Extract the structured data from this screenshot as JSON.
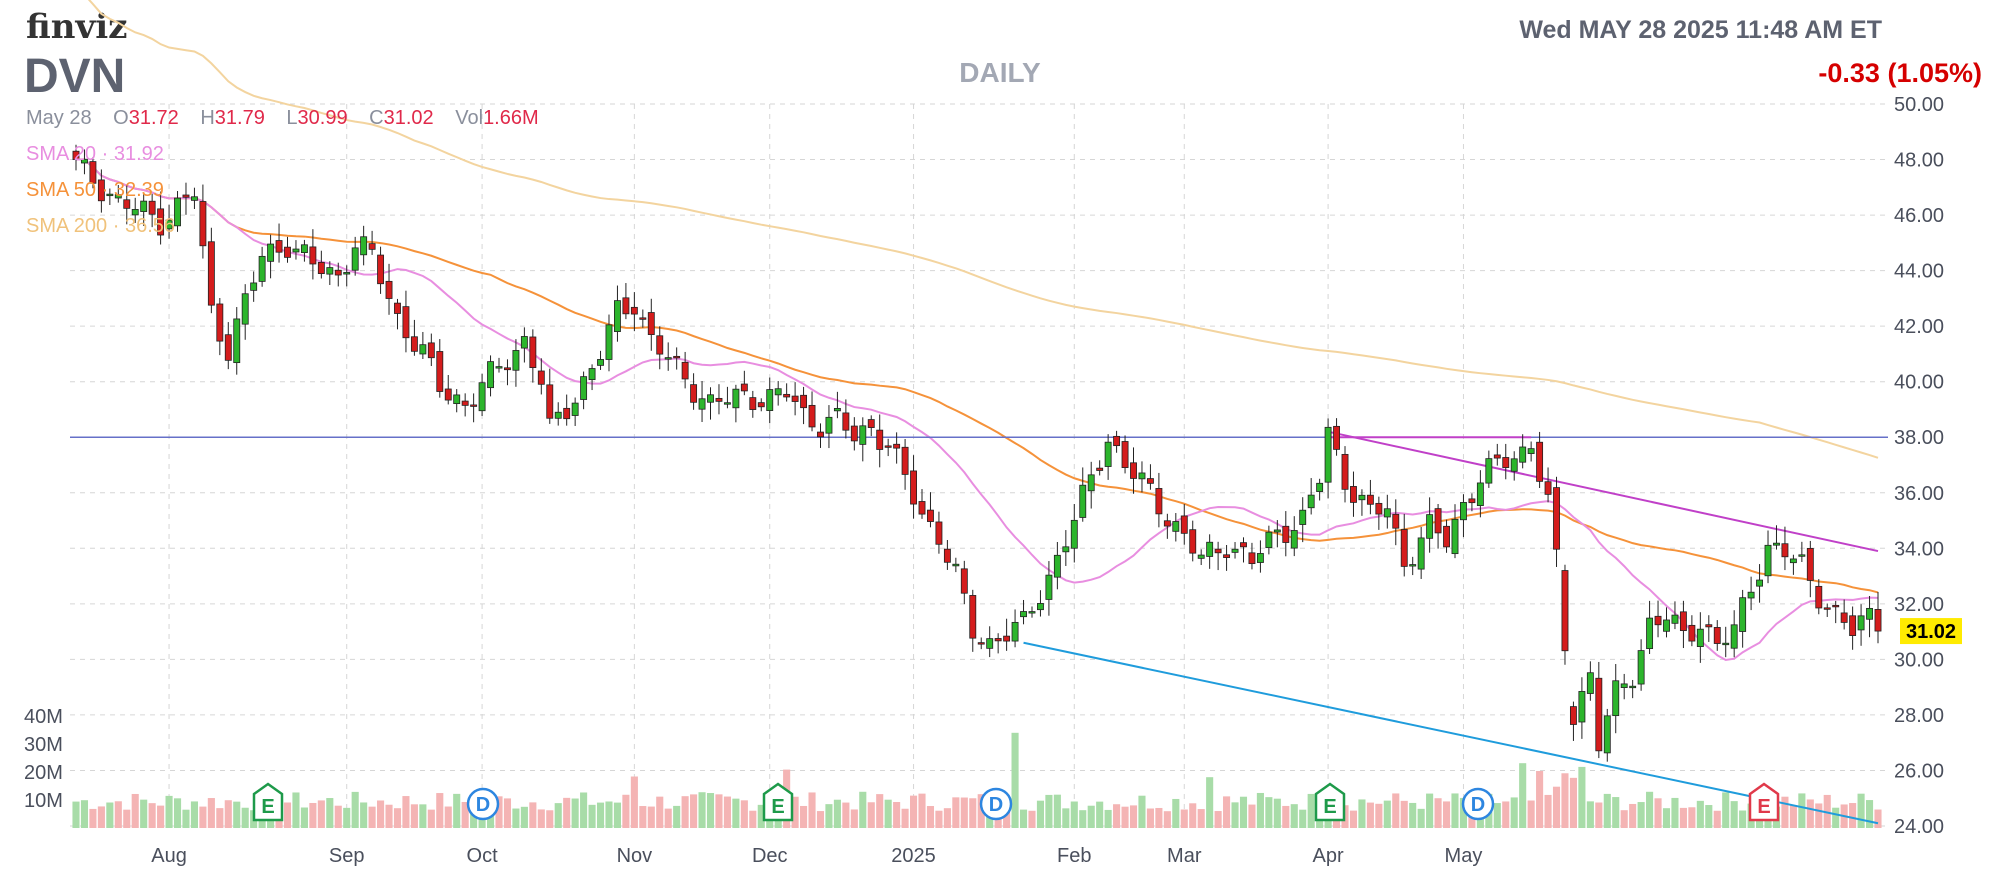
{
  "header": {
    "logo": "finviz",
    "ticker": "DVN",
    "timeframe": "DAILY",
    "datetime": "Wed MAY 28 2025 11:48 AM ET",
    "change": "-0.33 (1.05%)"
  },
  "ohlc": {
    "date": "May 28",
    "o_label": "O",
    "o": "31.72",
    "h_label": "H",
    "h": "31.79",
    "l_label": "L",
    "l": "30.99",
    "c_label": "C",
    "c": "31.02",
    "vol_label": "Vol",
    "vol": "1.66M"
  },
  "sma_legend": [
    {
      "label": "SMA 20",
      "value": "31.92",
      "color": "#e07be0"
    },
    {
      "label": "SMA 50",
      "value": "32.39",
      "color": "#f28c28"
    },
    {
      "label": "SMA 200",
      "value": "36.56",
      "color": "#f0c27b"
    }
  ],
  "last_price_label": "31.02",
  "colors": {
    "up": "#2cb52c",
    "down": "#d41c1c",
    "vol_up": "#a8dca8",
    "vol_down": "#f4b4b4",
    "sma20": "#e88ee0",
    "sma50": "#f5923a",
    "sma200": "#f3d49f",
    "support": "#6670c8",
    "resistance": "#c040c8",
    "trend_low": "#1f9cdc",
    "price_tag_bg": "#ffeb00"
  },
  "chart_data": {
    "type": "candlestick",
    "y_range": [
      24,
      50
    ],
    "y_ticks": [
      "50.00",
      "48.00",
      "46.00",
      "44.00",
      "42.00",
      "40.00",
      "38.00",
      "36.00",
      "34.00",
      "32.00",
      "30.00",
      "28.00",
      "26.00",
      "24.00"
    ],
    "volume_ticks": [
      "40M",
      "30M",
      "20M",
      "10M"
    ],
    "x_labels": [
      "Aug",
      "Sep",
      "Oct",
      "Nov",
      "Dec",
      "2025",
      "Feb",
      "Mar",
      "Apr",
      "May"
    ],
    "events": [
      "E",
      "D",
      "E",
      "D",
      "E",
      "D",
      "E"
    ],
    "price_anchors": [
      [
        0,
        47.8
      ],
      [
        5,
        46.5
      ],
      [
        10,
        45.8
      ],
      [
        14,
        46.8
      ],
      [
        16,
        42.5
      ],
      [
        18,
        41.2
      ],
      [
        22,
        44.5
      ],
      [
        25,
        45.0
      ],
      [
        28,
        44.2
      ],
      [
        31,
        43.8
      ],
      [
        33,
        45.0
      ],
      [
        35,
        44.5
      ],
      [
        38,
        42.3
      ],
      [
        41,
        41.0
      ],
      [
        43,
        39.8
      ],
      [
        46,
        39.2
      ],
      [
        50,
        40.5
      ],
      [
        53,
        41.5
      ],
      [
        55,
        40.0
      ],
      [
        56,
        38.2
      ],
      [
        59,
        39.5
      ],
      [
        62,
        41.0
      ],
      [
        64,
        42.5
      ],
      [
        66,
        42.9
      ],
      [
        68,
        41.5
      ],
      [
        70,
        40.8
      ],
      [
        73,
        39.8
      ],
      [
        75,
        39.2
      ],
      [
        79,
        39.5
      ],
      [
        82,
        39.4
      ],
      [
        84,
        39.6
      ],
      [
        86,
        38.8
      ],
      [
        88,
        38.5
      ],
      [
        90,
        38.6
      ],
      [
        92,
        38.0
      ],
      [
        94,
        38.4
      ],
      [
        96,
        37.7
      ],
      [
        98,
        36.5
      ],
      [
        100,
        35.2
      ],
      [
        102,
        34.5
      ],
      [
        104,
        33.0
      ],
      [
        106,
        31.0
      ],
      [
        108,
        30.6
      ],
      [
        110,
        31.0
      ],
      [
        112,
        31.2
      ],
      [
        115,
        33.0
      ],
      [
        118,
        35.0
      ],
      [
        120,
        36.5
      ],
      [
        122,
        38.0
      ],
      [
        124,
        37.0
      ],
      [
        127,
        36.0
      ],
      [
        130,
        34.8
      ],
      [
        133,
        33.6
      ],
      [
        136,
        34.2
      ],
      [
        139,
        33.5
      ],
      [
        142,
        34.6
      ],
      [
        145,
        35.0
      ],
      [
        147,
        36.5
      ],
      [
        148,
        38.2
      ],
      [
        150,
        36.5
      ],
      [
        153,
        35.2
      ],
      [
        155,
        35.5
      ],
      [
        157,
        33.5
      ],
      [
        160,
        34.7
      ],
      [
        162,
        34.3
      ],
      [
        164,
        35.6
      ],
      [
        166,
        36.5
      ],
      [
        169,
        37.2
      ],
      [
        171,
        37.5
      ],
      [
        172,
        37.8
      ],
      [
        174,
        35.6
      ],
      [
        175,
        33.5
      ],
      [
        176,
        30.5
      ],
      [
        177,
        28.0
      ],
      [
        179,
        29.5
      ],
      [
        180,
        27.0
      ],
      [
        182,
        28.7
      ],
      [
        184,
        29.5
      ],
      [
        186,
        31.3
      ],
      [
        188,
        31.5
      ],
      [
        190,
        30.8
      ],
      [
        192,
        31.4
      ],
      [
        194,
        30.5
      ],
      [
        196,
        31.0
      ],
      [
        198,
        32.7
      ],
      [
        200,
        34.0
      ],
      [
        202,
        33.8
      ],
      [
        204,
        33.4
      ],
      [
        206,
        32.4
      ],
      [
        208,
        31.5
      ],
      [
        210,
        31.0
      ],
      [
        212,
        31.7
      ],
      [
        213,
        31.02
      ]
    ],
    "n_bars": 214,
    "close": 31.02,
    "horizontal_lines": [
      {
        "level": 38.0
      }
    ],
    "trendlines": [
      {
        "x1": 148,
        "y1": 38.0,
        "x2": 172,
        "y2": 38.0
      },
      {
        "x1": 148,
        "y1": 38.2,
        "x2": 213,
        "y2": 33.9
      },
      {
        "x1": 112,
        "y1": 30.6,
        "x2": 213,
        "y2": 24.1
      }
    ]
  }
}
